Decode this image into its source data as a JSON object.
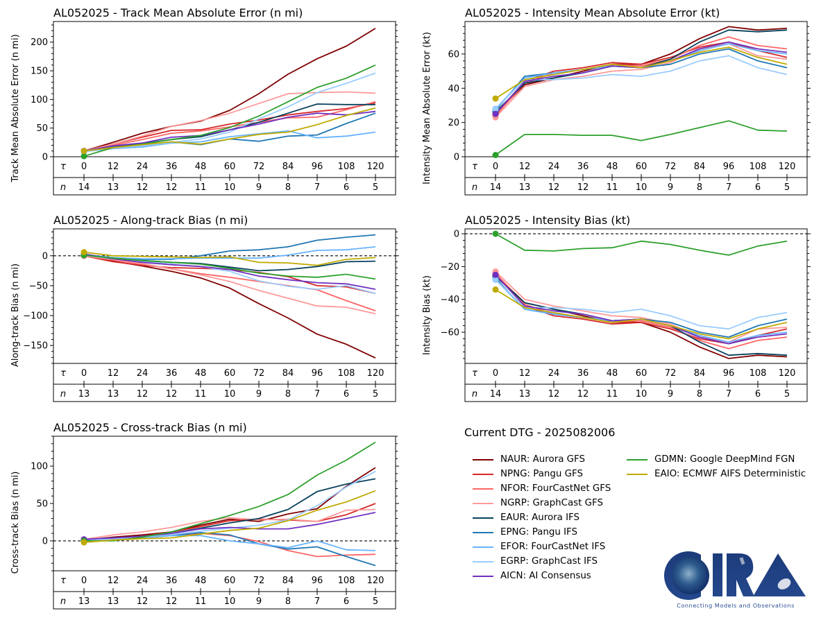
{
  "header": {
    "dtg_label": "Current DTG - 2025082006"
  },
  "models": [
    {
      "id": "NAUR",
      "label": "NAUR: Aurora GFS",
      "color": "#7f0000"
    },
    {
      "id": "NPNG",
      "label": "NPNG: Pangu GFS",
      "color": "#d62728"
    },
    {
      "id": "NFOR",
      "label": "NFOR: FourCastNet GFS",
      "color": "#ff6666"
    },
    {
      "id": "NGRP",
      "label": "NGRP: GraphCast GFS",
      "color": "#ff9999"
    },
    {
      "id": "EAUR",
      "label": "EAUR: Aurora IFS",
      "color": "#08415c"
    },
    {
      "id": "EPNG",
      "label": "EPNG: Pangu IFS",
      "color": "#1f77b4"
    },
    {
      "id": "EFOR",
      "label": "EFOR: FourCastNet IFS",
      "color": "#66b3ff"
    },
    {
      "id": "EGRP",
      "label": "EGRP: GraphCast IFS",
      "color": "#99ccff"
    },
    {
      "id": "AICN",
      "label": "AICN: AI Consensus",
      "color": "#7030c0"
    },
    {
      "id": "GDMN",
      "label": "GDMN: Google DeepMind FGN",
      "color": "#2ca02c"
    },
    {
      "id": "EAIO",
      "label": "EAIO: ECMWF AIFS Deterministic",
      "color": "#bfaa00"
    }
  ],
  "logo": {
    "text": "CIRA",
    "tagline": "Connecting Models and Observations"
  },
  "chart_data": [
    {
      "id": "track_mae",
      "type": "line",
      "title": "AL052025 - Track Mean Absolute Error (n mi)",
      "ylabel": "Track Mean Absolute Error (n mi)",
      "xlabel_symbol": "τ",
      "count_symbol": "n",
      "x": [
        0,
        12,
        24,
        36,
        48,
        60,
        72,
        84,
        96,
        108,
        120
      ],
      "n": [
        14,
        13,
        12,
        12,
        11,
        10,
        9,
        8,
        7,
        6,
        5
      ],
      "ylim": [
        0,
        236
      ],
      "yticks": [
        0,
        50,
        100,
        150,
        200
      ],
      "zero_line": false,
      "series": [
        {
          "name": "NAUR",
          "values": [
            10,
            25,
            41,
            53,
            62,
            81,
            110,
            144,
            171,
            193,
            224
          ]
        },
        {
          "name": "NPNG",
          "values": [
            10,
            22,
            34,
            46,
            47,
            57,
            64,
            73,
            79,
            84,
            94
          ]
        },
        {
          "name": "NFOR",
          "values": [
            10,
            20,
            30,
            41,
            45,
            52,
            60,
            68,
            69,
            82,
            96
          ]
        },
        {
          "name": "NGRP",
          "values": [
            10,
            22,
            36,
            53,
            63,
            76,
            93,
            110,
            112,
            113,
            111
          ]
        },
        {
          "name": "EAUR",
          "values": [
            10,
            17,
            23,
            30,
            35,
            47,
            60,
            76,
            92,
            91,
            91
          ]
        },
        {
          "name": "EPNG",
          "values": [
            10,
            17,
            20,
            26,
            21,
            31,
            27,
            36,
            38,
            58,
            76
          ]
        },
        {
          "name": "EFOR",
          "values": [
            9,
            14,
            17,
            24,
            26,
            35,
            40,
            45,
            33,
            36,
            43
          ]
        },
        {
          "name": "EGRP",
          "values": [
            9,
            15,
            19,
            25,
            31,
            43,
            66,
            87,
            112,
            128,
            146
          ]
        },
        {
          "name": "AICN",
          "values": [
            10,
            19,
            24,
            34,
            37,
            47,
            57,
            69,
            76,
            73,
            79
          ]
        },
        {
          "name": "GDMN",
          "values": [
            1,
            16,
            22,
            30,
            37,
            51,
            71,
            96,
            121,
            137,
            160
          ]
        },
        {
          "name": "EAIO",
          "values": [
            10,
            16,
            21,
            26,
            22,
            31,
            39,
            43,
            56,
            72,
            85
          ]
        }
      ]
    },
    {
      "id": "intensity_mae",
      "type": "line",
      "title": "AL052025 - Intensity Mean Absolute Error (kt)",
      "ylabel": "Intensity Mean Absolute Error (kt)",
      "xlabel_symbol": "τ",
      "count_symbol": "n",
      "x": [
        0,
        12,
        24,
        36,
        48,
        60,
        72,
        84,
        96,
        108,
        120
      ],
      "n": [
        14,
        13,
        12,
        12,
        11,
        10,
        9,
        8,
        7,
        6,
        5
      ],
      "ylim": [
        0,
        79
      ],
      "yticks": [
        0,
        20,
        40,
        60
      ],
      "zero_line": false,
      "series": [
        {
          "name": "NAUR",
          "values": [
            25,
            42,
            46,
            50,
            54,
            54,
            60,
            69,
            76,
            74,
            75
          ]
        },
        {
          "name": "NPNG",
          "values": [
            25,
            44,
            50,
            52,
            55,
            54,
            58,
            64,
            67,
            62,
            58
          ]
        },
        {
          "name": "NFOR",
          "values": [
            24,
            43,
            49,
            51,
            54,
            53,
            57,
            65,
            70,
            65,
            63
          ]
        },
        {
          "name": "NGRP",
          "values": [
            23,
            41,
            45,
            47,
            50,
            51,
            55,
            63,
            66,
            59,
            57
          ]
        },
        {
          "name": "EAUR",
          "values": [
            26,
            43,
            46,
            49,
            53,
            52,
            57,
            67,
            74,
            73,
            74
          ]
        },
        {
          "name": "EPNG",
          "values": [
            27,
            47,
            49,
            51,
            53,
            52,
            54,
            60,
            63,
            56,
            52
          ]
        },
        {
          "name": "EFOR",
          "values": [
            28,
            46,
            49,
            51,
            53,
            52,
            56,
            62,
            66,
            62,
            60
          ]
        },
        {
          "name": "EGRP",
          "values": [
            28,
            45,
            45,
            46,
            48,
            47,
            50,
            56,
            59,
            52,
            48
          ]
        },
        {
          "name": "AICN",
          "values": [
            25,
            44,
            47,
            49,
            53,
            52,
            56,
            63,
            67,
            63,
            61
          ]
        },
        {
          "name": "GDMN",
          "values": [
            1,
            13,
            13,
            12.5,
            12.5,
            9.5,
            13,
            17,
            21,
            15.5,
            15
          ]
        },
        {
          "name": "EAIO",
          "values": [
            34,
            45,
            48,
            51,
            54,
            52,
            56,
            61,
            64,
            58,
            54
          ]
        }
      ]
    },
    {
      "id": "along_track_bias",
      "type": "line",
      "title": "AL052025 - Along-track Bias (n mi)",
      "ylabel": "Along-track Bias (n mi)",
      "xlabel_symbol": "τ",
      "count_symbol": "n",
      "x": [
        0,
        12,
        24,
        36,
        48,
        60,
        72,
        84,
        96,
        108,
        120
      ],
      "n": [
        13,
        13,
        12,
        12,
        11,
        10,
        9,
        8,
        7,
        6,
        5
      ],
      "ylim": [
        -180,
        45
      ],
      "yticks": [
        -150,
        -100,
        -50,
        0
      ],
      "zero_line": true,
      "series": [
        {
          "name": "NAUR",
          "values": [
            0,
            -9,
            -17,
            -26,
            -37,
            -54,
            -80,
            -104,
            -131,
            -148,
            -171
          ]
        },
        {
          "name": "NPNG",
          "values": [
            0,
            -10,
            -16,
            -20,
            -21,
            -23,
            -28,
            -35,
            -50,
            -52,
            -63
          ]
        },
        {
          "name": "NFOR",
          "values": [
            0,
            -7,
            -14,
            -22,
            -30,
            -36,
            -43,
            -50,
            -57,
            -75,
            -92
          ]
        },
        {
          "name": "NGRP",
          "values": [
            0,
            -6,
            -13,
            -22,
            -32,
            -43,
            -58,
            -71,
            -84,
            -86,
            -97
          ]
        },
        {
          "name": "EAUR",
          "values": [
            1,
            -5,
            -8,
            -11,
            -13,
            -19,
            -25,
            -23,
            -18,
            -10,
            -9
          ]
        },
        {
          "name": "EPNG",
          "values": [
            2,
            -4,
            -6,
            -6,
            0,
            8,
            10,
            15,
            26,
            31,
            35
          ]
        },
        {
          "name": "EFOR",
          "values": [
            2,
            -3,
            -5,
            -5,
            -4,
            -4,
            -4,
            1,
            9,
            10,
            15
          ]
        },
        {
          "name": "EGRP",
          "values": [
            1,
            -5,
            -10,
            -14,
            -18,
            -26,
            -42,
            -51,
            -56,
            -50,
            -63
          ]
        },
        {
          "name": "AICN",
          "values": [
            3,
            -5,
            -11,
            -15,
            -18,
            -23,
            -34,
            -40,
            -45,
            -47,
            -56
          ]
        },
        {
          "name": "GDMN",
          "values": [
            1,
            -4,
            -8,
            -11,
            -14,
            -21,
            -29,
            -34,
            -36,
            -31,
            -39
          ]
        },
        {
          "name": "EAIO",
          "values": [
            6,
            0,
            -1,
            -2,
            -3,
            -2,
            -11,
            -12,
            -16,
            -6,
            -3
          ]
        }
      ]
    },
    {
      "id": "intensity_bias",
      "type": "line",
      "title": "AL052025 - Intensity Bias (kt)",
      "ylabel": "Intensity Bias (kt)",
      "xlabel_symbol": "τ",
      "count_symbol": "n",
      "x": [
        0,
        12,
        24,
        36,
        48,
        60,
        72,
        84,
        96,
        108,
        120
      ],
      "n": [
        14,
        13,
        12,
        12,
        11,
        10,
        9,
        8,
        7,
        6,
        5
      ],
      "ylim": [
        -79,
        3
      ],
      "yticks": [
        -60,
        -40,
        -20,
        0
      ],
      "zero_line": true,
      "series": [
        {
          "name": "NAUR",
          "values": [
            -25,
            -42,
            -46,
            -50,
            -54,
            -54,
            -60,
            -69,
            -76,
            -74,
            -75
          ]
        },
        {
          "name": "NPNG",
          "values": [
            -25,
            -44,
            -50,
            -52,
            -55,
            -54,
            -58,
            -64,
            -67,
            -62,
            -58
          ]
        },
        {
          "name": "NFOR",
          "values": [
            -24,
            -43,
            -49,
            -51,
            -54,
            -53,
            -57,
            -65,
            -70,
            -65,
            -63
          ]
        },
        {
          "name": "NGRP",
          "values": [
            -23,
            -40,
            -44,
            -47,
            -50,
            -51,
            -55,
            -63,
            -66,
            -58,
            -57
          ]
        },
        {
          "name": "EAUR",
          "values": [
            -26,
            -42,
            -46,
            -49,
            -53,
            -52,
            -56,
            -66,
            -74,
            -73,
            -74
          ]
        },
        {
          "name": "EPNG",
          "values": [
            -27,
            -46,
            -49,
            -51,
            -53,
            -52,
            -54,
            -60,
            -63,
            -56,
            -52
          ]
        },
        {
          "name": "EFOR",
          "values": [
            -28,
            -46,
            -49,
            -51,
            -53,
            -52,
            -56,
            -62,
            -66,
            -62,
            -60
          ]
        },
        {
          "name": "EGRP",
          "values": [
            -28,
            -45,
            -45,
            -46,
            -48,
            -46,
            -50,
            -56,
            -58,
            -51,
            -48
          ]
        },
        {
          "name": "AICN",
          "values": [
            -25,
            -44,
            -47,
            -49,
            -53,
            -52,
            -56,
            -63,
            -67,
            -63,
            -61
          ]
        },
        {
          "name": "GDMN",
          "values": [
            0,
            -10,
            -10.5,
            -9,
            -8.5,
            -4.5,
            -6.5,
            -10,
            -13,
            -7.5,
            -4.5
          ]
        },
        {
          "name": "EAIO",
          "values": [
            -34,
            -45,
            -48,
            -51,
            -54,
            -52,
            -56,
            -61,
            -64,
            -58,
            -54
          ]
        }
      ]
    },
    {
      "id": "cross_track_bias",
      "type": "line",
      "title": "AL052025 - Cross-track Bias (n mi)",
      "ylabel": "Cross-track Bias (n mi)",
      "xlabel_symbol": "τ",
      "count_symbol": "n",
      "x": [
        0,
        12,
        24,
        36,
        48,
        60,
        72,
        84,
        96,
        108,
        120
      ],
      "n": [
        13,
        13,
        12,
        12,
        11,
        10,
        9,
        8,
        7,
        6,
        5
      ],
      "ylim": [
        -40,
        140
      ],
      "yticks": [
        0,
        50,
        100
      ],
      "zero_line": true,
      "series": [
        {
          "name": "NAUR",
          "values": [
            1,
            5,
            8,
            12,
            21,
            29,
            26,
            36,
            43,
            73,
            98
          ]
        },
        {
          "name": "NPNG",
          "values": [
            1,
            4,
            6,
            12,
            19,
            27,
            29,
            28,
            26,
            35,
            50
          ]
        },
        {
          "name": "NFOR",
          "values": [
            0,
            2,
            4,
            7,
            10,
            7,
            -1,
            -13,
            -21,
            -19,
            -18
          ]
        },
        {
          "name": "NGRP",
          "values": [
            2,
            8,
            12,
            18,
            26,
            31,
            28,
            29,
            26,
            41,
            42
          ]
        },
        {
          "name": "EAUR",
          "values": [
            1,
            4,
            6,
            10,
            17,
            24,
            30,
            42,
            66,
            76,
            83
          ]
        },
        {
          "name": "EPNG",
          "values": [
            0,
            3,
            5,
            7,
            11,
            8,
            -4,
            -11,
            -8,
            -21,
            -33
          ]
        },
        {
          "name": "EFOR",
          "values": [
            0,
            2,
            4,
            7,
            7,
            0,
            -4,
            -9,
            0,
            -12,
            -13
          ]
        },
        {
          "name": "EGRP",
          "values": [
            0,
            3,
            5,
            9,
            13,
            17,
            21,
            28,
            47,
            72,
            93
          ]
        },
        {
          "name": "AICN",
          "values": [
            2,
            4,
            6,
            10,
            16,
            18,
            16,
            16,
            22,
            30,
            38
          ]
        },
        {
          "name": "GDMN",
          "values": [
            0,
            0,
            5,
            12,
            23,
            34,
            46,
            62,
            88,
            108,
            132
          ]
        },
        {
          "name": "EAIO",
          "values": [
            -2,
            1,
            3,
            4,
            9,
            14,
            17,
            27,
            41,
            52,
            67
          ]
        }
      ]
    }
  ]
}
